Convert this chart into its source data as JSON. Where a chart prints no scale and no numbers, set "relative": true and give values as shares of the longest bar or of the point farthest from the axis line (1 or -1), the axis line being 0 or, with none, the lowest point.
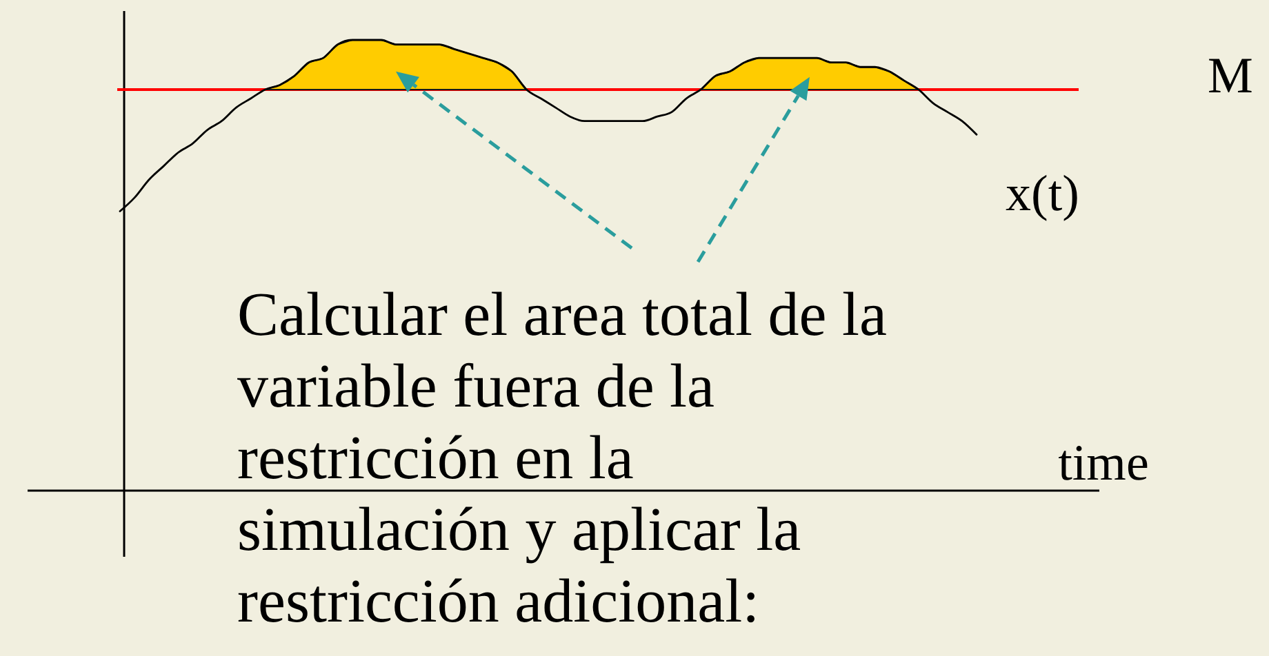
{
  "chart_data": {
    "type": "line",
    "relative": true,
    "xlabel": "time",
    "categories": [
      null,
      null,
      null,
      null,
      null,
      null,
      null,
      null,
      null,
      null,
      null,
      null,
      null,
      null,
      null,
      null,
      null,
      null,
      null,
      null,
      null,
      null,
      null,
      null,
      null,
      null,
      null,
      null,
      null,
      null,
      null,
      null,
      null,
      null,
      null,
      null,
      null,
      null,
      null,
      null,
      null,
      null,
      null,
      null,
      null,
      null,
      null,
      null,
      null,
      null,
      null,
      null,
      null,
      null,
      null,
      null,
      null,
      null,
      null,
      null
    ],
    "series": [
      {
        "name": "x(t)",
        "color": "#000000",
        "values": [
          0.62,
          0.65,
          0.69,
          0.72,
          0.75,
          0.77,
          0.8,
          0.82,
          0.85,
          0.87,
          0.89,
          0.9,
          0.92,
          0.95,
          0.96,
          0.99,
          1,
          1,
          1,
          0.99,
          0.99,
          0.99,
          0.99,
          0.98,
          0.97,
          0.96,
          0.95,
          0.93,
          0.89,
          0.87,
          0.85,
          0.83,
          0.82,
          0.82,
          0.82,
          0.82,
          0.82,
          0.83,
          0.84,
          0.87,
          0.89,
          0.92,
          0.93,
          0.95,
          0.96,
          0.96,
          0.96,
          0.96,
          0.96,
          0.95,
          0.95,
          0.94,
          0.94,
          0.93,
          0.91,
          0.89,
          0.86,
          0.84,
          0.82,
          0.79
        ]
      },
      {
        "type": "area",
        "color": "#ffcc00",
        "values": [
          null,
          null,
          null,
          null,
          null,
          null,
          null,
          null,
          null,
          null,
          0.89,
          0.9,
          0.92,
          0.95,
          0.96,
          0.99,
          1,
          1,
          1,
          0.99,
          0.99,
          0.99,
          0.99,
          0.98,
          0.97,
          0.96,
          0.95,
          0.93,
          0.89,
          null,
          null,
          null,
          null,
          null,
          null,
          null,
          null,
          null,
          null,
          null,
          0.89,
          0.92,
          0.93,
          0.95,
          0.96,
          0.96,
          0.96,
          0.96,
          0.96,
          0.95,
          0.95,
          0.94,
          0.94,
          0.93,
          0.91,
          0.89,
          null,
          null,
          null,
          null
        ]
      }
    ],
    "ref_lines": [
      {
        "axis": "y",
        "value": 0.89,
        "label": "M",
        "color": "#ff0000"
      }
    ],
    "annotations": [
      "Calcular el area total de la variable fuera de la restricción en la simulación y aplicar la restricción adicional:"
    ]
  }
}
